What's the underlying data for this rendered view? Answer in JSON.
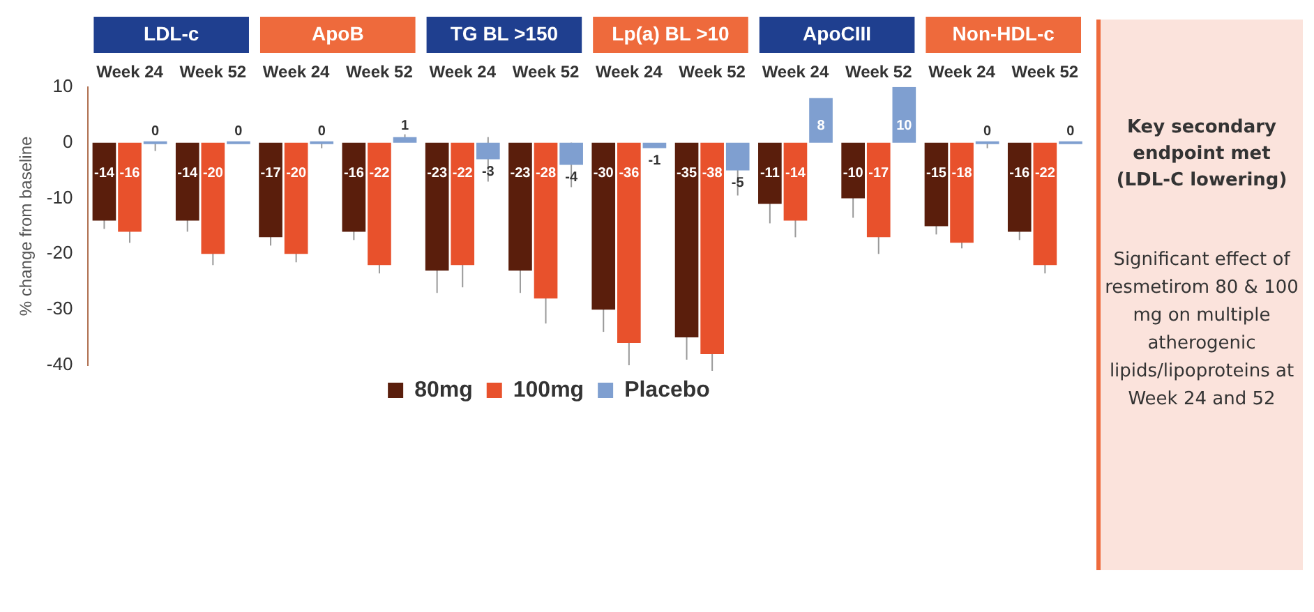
{
  "chart_data": [
    {
      "type": "bar",
      "ylabel": "% change from baseline",
      "categories": [
        "Week 24",
        "Week 52",
        "Week 24",
        "Week 52",
        "Week 24",
        "Week 52",
        "Week 24",
        "Week 52",
        "Week 24",
        "Week 52",
        "Week 24",
        "Week 52"
      ],
      "series": [
        {
          "name": "80mg",
          "color": "#5a1e0c",
          "values": [
            -14,
            -14,
            -17,
            -16,
            -23,
            -23,
            -30,
            -35,
            -11,
            -10,
            -15,
            -16
          ],
          "errors": [
            1.5,
            2,
            1.5,
            1.5,
            4,
            4,
            4,
            4,
            3.5,
            3.5,
            1.5,
            1.5
          ]
        },
        {
          "name": "100mg",
          "color": "#e8512c",
          "values": [
            -16,
            -20,
            -20,
            -22,
            -22,
            -28,
            -36,
            -38,
            -14,
            -17,
            -18,
            -22
          ],
          "errors": [
            2,
            2,
            1.5,
            1.5,
            4,
            4.5,
            4,
            3,
            3,
            3,
            1,
            1.5
          ]
        },
        {
          "name": "Placebo",
          "color": "#7f9fd0",
          "values": [
            0,
            0,
            0,
            1,
            -3,
            -4,
            -1,
            -5,
            8,
            10,
            0,
            0
          ],
          "errors": [
            [
              -1.5,
              0
            ],
            null,
            [
              -1,
              0
            ],
            0.5,
            4,
            4,
            null,
            4.5,
            null,
            null,
            [
              -1,
              0
            ],
            null
          ]
        }
      ],
      "ylim": [
        -40,
        10
      ],
      "yticks": [
        -40,
        -30,
        -20,
        -10,
        0,
        10
      ],
      "grid": false,
      "legend": "bottom",
      "data_labels": true,
      "annotations": [
        "LDL-c",
        "ApoB",
        "TG BL >150",
        "Lp(a) BL >10",
        "ApoCIII",
        "Non-HDL-c"
      ]
    },
    {
      "type": "other",
      "title": "Key secondary endpoint met (LDL-C lowering)",
      "annotations": [
        "Significant effect of resmetirom 80 & 100 mg on multiple atherogenic lipids/lipoproteins at Week 24 and 52"
      ]
    }
  ]
}
